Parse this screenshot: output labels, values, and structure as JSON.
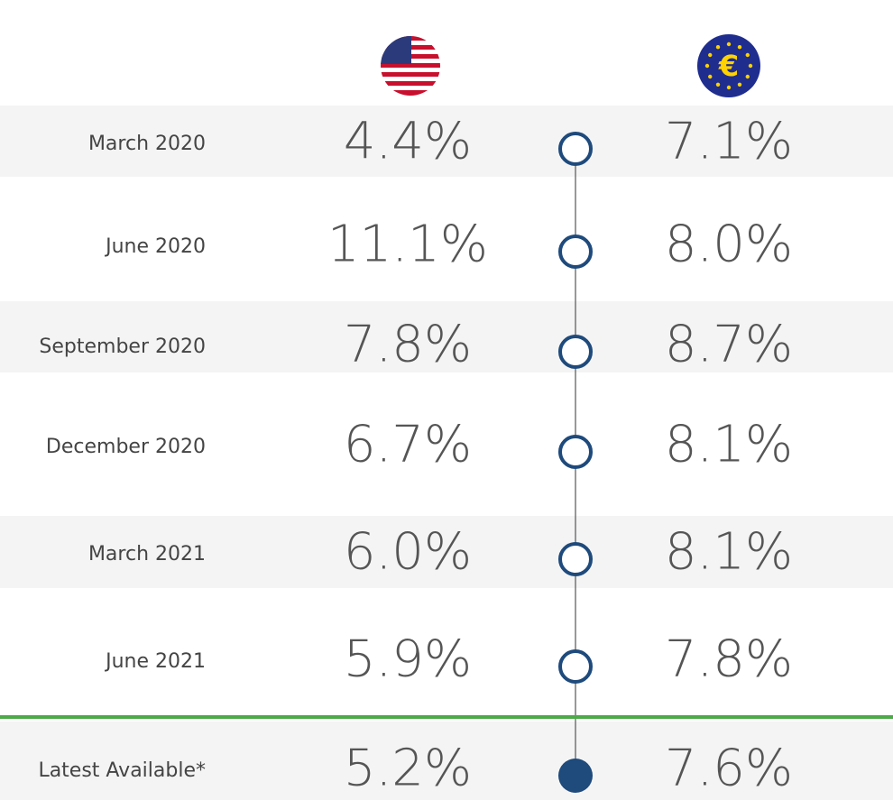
{
  "table": {
    "rows": [
      [
        "March 2020",
        "4.4%",
        "7.1%"
      ],
      [
        "June 2020",
        "11.1%",
        "8.0%"
      ],
      [
        "September 2020",
        "7.8%",
        "8.7%"
      ],
      [
        "December 2020",
        "6.7%",
        "8.1%"
      ],
      [
        "March 2021",
        "6.0%",
        "8.1%"
      ],
      [
        "June 2021",
        "5.9%",
        "7.8%"
      ],
      [
        "Latest Available*",
        "5.2%",
        "7.6%"
      ]
    ]
  }
}
